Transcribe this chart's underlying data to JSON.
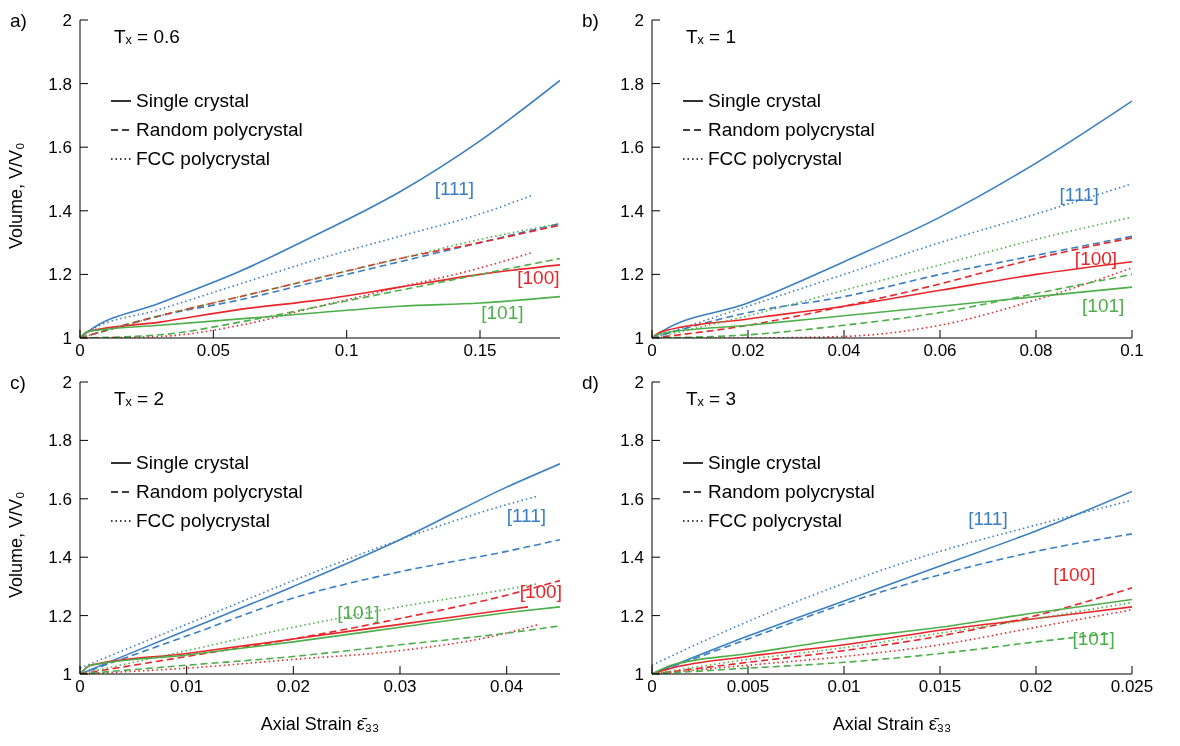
{
  "chart_data": [
    {
      "type": "line",
      "title": "Tₓ = 0.6",
      "ylabel": "Volume, V/V₀",
      "xlim": [
        0,
        0.18
      ],
      "xticks": [
        0,
        0.05,
        0.1,
        0.15
      ],
      "ylim": [
        1,
        2
      ],
      "yticks": [
        1,
        1.2,
        1.4,
        1.6,
        1.8,
        2
      ],
      "grid": false,
      "legend": false,
      "annotations": [
        "a)",
        "Single crystal",
        "Random polycrystal",
        "FCC polycrystal",
        "[111]",
        "[100]",
        "[101]"
      ],
      "series": [
        {
          "color": "#3a7fc1",
          "line_style": "solid",
          "x": [
            0,
            0.003,
            0.03,
            0.06,
            0.09,
            0.12,
            0.15,
            0.18
          ],
          "values": [
            1,
            1.02,
            1.11,
            1.21,
            1.33,
            1.46,
            1.62,
            1.81
          ]
        },
        {
          "color": "#3a7fc1",
          "line_style": "dashed",
          "x": [
            0,
            0.03,
            0.06,
            0.09,
            0.12,
            0.15,
            0.18
          ],
          "values": [
            1,
            1.07,
            1.12,
            1.18,
            1.24,
            1.3,
            1.36
          ]
        },
        {
          "color": "#3a7fc1",
          "line_style": "dotted",
          "x": [
            0,
            0.003,
            0.03,
            0.06,
            0.09,
            0.12,
            0.15,
            0.17
          ],
          "values": [
            1,
            1.02,
            1.09,
            1.17,
            1.25,
            1.32,
            1.39,
            1.45
          ]
        },
        {
          "color": "#e8262a",
          "line_style": "solid",
          "x": [
            0,
            0.003,
            0.03,
            0.06,
            0.09,
            0.12,
            0.15,
            0.18
          ],
          "values": [
            1,
            1.02,
            1.05,
            1.09,
            1.12,
            1.16,
            1.2,
            1.23
          ]
        },
        {
          "color": "#e8262a",
          "line_style": "dashed",
          "x": [
            0,
            0.03,
            0.06,
            0.09,
            0.12,
            0.15,
            0.18
          ],
          "values": [
            1,
            1.07,
            1.13,
            1.19,
            1.25,
            1.3,
            1.355
          ]
        },
        {
          "color": "#e8262a",
          "line_style": "dotted",
          "x": [
            0,
            0.03,
            0.06,
            0.09,
            0.12,
            0.15,
            0.17
          ],
          "values": [
            1,
            1.005,
            1.04,
            1.1,
            1.16,
            1.22,
            1.27
          ]
        },
        {
          "color": "#4daf4a",
          "line_style": "solid",
          "x": [
            0,
            0.003,
            0.03,
            0.06,
            0.09,
            0.12,
            0.15,
            0.18
          ],
          "values": [
            1,
            1.02,
            1.04,
            1.06,
            1.08,
            1.1,
            1.11,
            1.13
          ]
        },
        {
          "color": "#4daf4a",
          "line_style": "dashed",
          "x": [
            0,
            0.03,
            0.06,
            0.09,
            0.12,
            0.15,
            0.18
          ],
          "values": [
            1,
            1.01,
            1.05,
            1.1,
            1.15,
            1.2,
            1.25
          ]
        },
        {
          "color": "#4daf4a",
          "line_style": "dotted",
          "x": [
            0,
            0.03,
            0.06,
            0.09,
            0.12,
            0.15,
            0.18
          ],
          "values": [
            1,
            1.07,
            1.13,
            1.19,
            1.25,
            1.31,
            1.36
          ]
        }
      ]
    },
    {
      "type": "line",
      "title": "Tₓ = 1",
      "xlim": [
        0,
        0.1
      ],
      "xticks": [
        0,
        0.02,
        0.04,
        0.06,
        0.08,
        0.1
      ],
      "ylim": [
        1,
        2
      ],
      "yticks": [
        1,
        1.2,
        1.4,
        1.6,
        1.8,
        2
      ],
      "grid": false,
      "legend": false,
      "annotations": [
        "b)",
        "Single crystal",
        "Random polycrystal",
        "FCC polycrystal",
        "[111]",
        "[100]",
        "[101]"
      ],
      "series": [
        {
          "color": "#3a7fc1",
          "line_style": "solid",
          "x": [
            0,
            0.002,
            0.02,
            0.04,
            0.06,
            0.08,
            0.1
          ],
          "values": [
            1,
            1.02,
            1.11,
            1.24,
            1.38,
            1.55,
            1.745
          ]
        },
        {
          "color": "#3a7fc1",
          "line_style": "dashed",
          "x": [
            0,
            0.02,
            0.04,
            0.06,
            0.08,
            0.1
          ],
          "values": [
            1,
            1.08,
            1.13,
            1.2,
            1.26,
            1.32
          ]
        },
        {
          "color": "#3a7fc1",
          "line_style": "dotted",
          "x": [
            0,
            0.02,
            0.04,
            0.06,
            0.08,
            0.1
          ],
          "values": [
            1,
            1.1,
            1.2,
            1.3,
            1.39,
            1.485
          ]
        },
        {
          "color": "#e8262a",
          "line_style": "solid",
          "x": [
            0,
            0.002,
            0.02,
            0.04,
            0.06,
            0.08,
            0.1
          ],
          "values": [
            1,
            1.02,
            1.06,
            1.1,
            1.15,
            1.2,
            1.24
          ]
        },
        {
          "color": "#e8262a",
          "line_style": "dashed",
          "x": [
            0,
            0.02,
            0.04,
            0.06,
            0.08,
            0.1
          ],
          "values": [
            1,
            1.04,
            1.1,
            1.17,
            1.25,
            1.315
          ]
        },
        {
          "color": "#e8262a",
          "line_style": "dotted",
          "x": [
            0,
            0.02,
            0.04,
            0.06,
            0.08,
            0.1
          ],
          "values": [
            1,
            1,
            1.005,
            1.04,
            1.12,
            1.22
          ]
        },
        {
          "color": "#4daf4a",
          "line_style": "solid",
          "x": [
            0,
            0.002,
            0.02,
            0.04,
            0.06,
            0.08,
            0.1
          ],
          "values": [
            1,
            1.015,
            1.04,
            1.07,
            1.1,
            1.13,
            1.16
          ]
        },
        {
          "color": "#4daf4a",
          "line_style": "dashed",
          "x": [
            0,
            0.02,
            0.04,
            0.06,
            0.08,
            0.1
          ],
          "values": [
            1,
            1.01,
            1.04,
            1.08,
            1.14,
            1.2
          ]
        },
        {
          "color": "#4daf4a",
          "line_style": "dotted",
          "x": [
            0,
            0.02,
            0.04,
            0.06,
            0.08,
            0.1
          ],
          "values": [
            1,
            1.07,
            1.15,
            1.23,
            1.31,
            1.38
          ]
        }
      ]
    },
    {
      "type": "line",
      "title": "Tₓ = 2",
      "xlabel": "Axial Strain ε̄₃₃",
      "ylabel": "Volume, V/V₀",
      "xlim": [
        0,
        0.045
      ],
      "xticks": [
        0,
        0.01,
        0.02,
        0.03,
        0.04
      ],
      "ylim": [
        1,
        2
      ],
      "yticks": [
        1,
        1.2,
        1.4,
        1.6,
        1.8,
        2
      ],
      "grid": false,
      "legend": false,
      "annotations": [
        "c)",
        "Single crystal",
        "Random polycrystal",
        "FCC polycrystal",
        "[111]",
        "[100]",
        "[101]"
      ],
      "series": [
        {
          "color": "#3a7fc1",
          "line_style": "solid",
          "x": [
            0,
            0.01,
            0.02,
            0.03,
            0.04,
            0.045
          ],
          "values": [
            1,
            1.15,
            1.3,
            1.46,
            1.64,
            1.72
          ]
        },
        {
          "color": "#3a7fc1",
          "line_style": "dashed",
          "x": [
            0,
            0.01,
            0.02,
            0.03,
            0.04,
            0.045
          ],
          "values": [
            1,
            1.13,
            1.26,
            1.35,
            1.42,
            1.46
          ]
        },
        {
          "color": "#3a7fc1",
          "line_style": "dotted",
          "x": [
            0,
            0.01,
            0.02,
            0.03,
            0.04,
            0.043
          ],
          "values": [
            1.02,
            1.17,
            1.32,
            1.46,
            1.58,
            1.61
          ]
        },
        {
          "color": "#e8262a",
          "line_style": "solid",
          "x": [
            0,
            0.001,
            0.01,
            0.02,
            0.03,
            0.04,
            0.042
          ],
          "values": [
            1,
            1.03,
            1.07,
            1.12,
            1.17,
            1.22,
            1.23
          ]
        },
        {
          "color": "#e8262a",
          "line_style": "dashed",
          "x": [
            0,
            0.01,
            0.02,
            0.03,
            0.04,
            0.045
          ],
          "values": [
            1,
            1.06,
            1.12,
            1.19,
            1.27,
            1.32
          ]
        },
        {
          "color": "#e8262a",
          "line_style": "dotted",
          "x": [
            0,
            0.01,
            0.02,
            0.03,
            0.04,
            0.043
          ],
          "values": [
            1,
            1.02,
            1.05,
            1.08,
            1.14,
            1.17
          ]
        },
        {
          "color": "#4daf4a",
          "line_style": "solid",
          "x": [
            0,
            0.001,
            0.01,
            0.02,
            0.03,
            0.04,
            0.045
          ],
          "values": [
            1,
            1.03,
            1.065,
            1.11,
            1.16,
            1.21,
            1.23
          ]
        },
        {
          "color": "#4daf4a",
          "line_style": "dashed",
          "x": [
            0,
            0.01,
            0.02,
            0.03,
            0.04,
            0.045
          ],
          "values": [
            1,
            1.03,
            1.06,
            1.1,
            1.14,
            1.165
          ]
        },
        {
          "color": "#4daf4a",
          "line_style": "dotted",
          "x": [
            0,
            0.01,
            0.02,
            0.03,
            0.04,
            0.043
          ],
          "values": [
            1,
            1.08,
            1.16,
            1.23,
            1.29,
            1.31
          ]
        }
      ]
    },
    {
      "type": "line",
      "title": "Tₓ = 3",
      "xlabel": "Axial Strain ε̄₃₃",
      "xlim": [
        0,
        0.025
      ],
      "xticks": [
        0,
        0.005,
        0.01,
        0.015,
        0.02,
        0.025
      ],
      "ylim": [
        1,
        2
      ],
      "yticks": [
        1,
        1.2,
        1.4,
        1.6,
        1.8,
        2
      ],
      "grid": false,
      "legend": false,
      "annotations": [
        "d)",
        "Single crystal",
        "Random polycrystal",
        "FCC polycrystal",
        "[111]",
        "[100]",
        "[101]"
      ],
      "series": [
        {
          "color": "#3a7fc1",
          "line_style": "solid",
          "x": [
            0,
            0.005,
            0.01,
            0.015,
            0.02,
            0.025
          ],
          "values": [
            1,
            1.13,
            1.25,
            1.37,
            1.49,
            1.625
          ]
        },
        {
          "color": "#3a7fc1",
          "line_style": "dashed",
          "x": [
            0,
            0.005,
            0.01,
            0.015,
            0.02,
            0.025
          ],
          "values": [
            1,
            1.12,
            1.24,
            1.34,
            1.42,
            1.48
          ]
        },
        {
          "color": "#3a7fc1",
          "line_style": "dotted",
          "x": [
            0,
            0.005,
            0.01,
            0.015,
            0.02,
            0.025
          ],
          "values": [
            1.03,
            1.18,
            1.31,
            1.42,
            1.51,
            1.595
          ]
        },
        {
          "color": "#e8262a",
          "line_style": "solid",
          "x": [
            0,
            0.001,
            0.005,
            0.01,
            0.015,
            0.02,
            0.025
          ],
          "values": [
            1,
            1.02,
            1.06,
            1.1,
            1.15,
            1.19,
            1.23
          ]
        },
        {
          "color": "#e8262a",
          "line_style": "dashed",
          "x": [
            0,
            0.005,
            0.01,
            0.015,
            0.02,
            0.025
          ],
          "values": [
            1,
            1.04,
            1.08,
            1.13,
            1.2,
            1.295
          ]
        },
        {
          "color": "#e8262a",
          "line_style": "dotted",
          "x": [
            0,
            0.005,
            0.01,
            0.015,
            0.02,
            0.025
          ],
          "values": [
            1,
            1.03,
            1.06,
            1.1,
            1.16,
            1.22
          ]
        },
        {
          "color": "#4daf4a",
          "line_style": "solid",
          "x": [
            0,
            0.001,
            0.005,
            0.01,
            0.015,
            0.02,
            0.025
          ],
          "values": [
            1,
            1.03,
            1.07,
            1.12,
            1.16,
            1.21,
            1.255
          ]
        },
        {
          "color": "#4daf4a",
          "line_style": "dashed",
          "x": [
            0,
            0.005,
            0.01,
            0.015,
            0.02,
            0.024
          ],
          "values": [
            1,
            1.02,
            1.04,
            1.07,
            1.11,
            1.14
          ]
        },
        {
          "color": "#4daf4a",
          "line_style": "dotted",
          "x": [
            0,
            0.005,
            0.01,
            0.015,
            0.02,
            0.025
          ],
          "values": [
            1,
            1.05,
            1.09,
            1.14,
            1.19,
            1.245
          ]
        }
      ]
    }
  ]
}
